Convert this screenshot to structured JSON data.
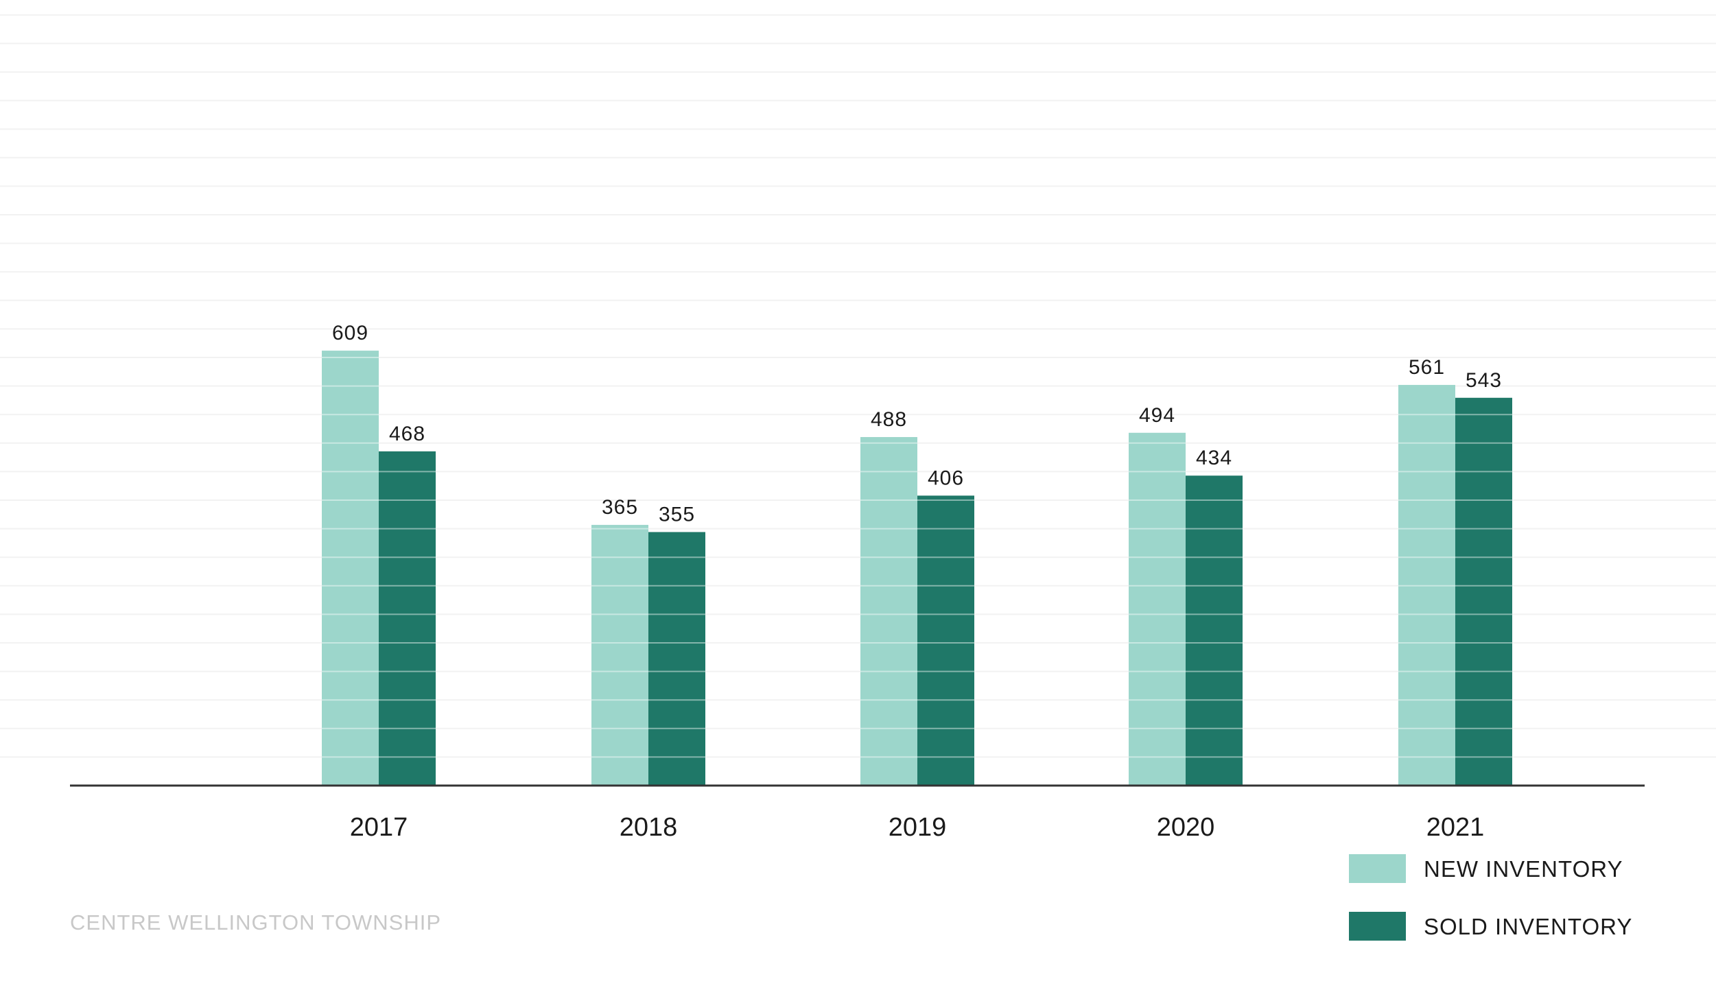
{
  "chart_data": {
    "type": "bar",
    "subtitle": "CENTRE WELLINGTON TOWNSHIP",
    "categories": [
      "2017",
      "2018",
      "2019",
      "2020",
      "2021"
    ],
    "series": [
      {
        "name": "NEW INVENTORY",
        "color": "#9cd6cb",
        "values": [
          609,
          365,
          488,
          494,
          561
        ]
      },
      {
        "name": "SOLD INVENTORY",
        "color": "#1f7868",
        "values": [
          468,
          355,
          406,
          434,
          543
        ]
      }
    ],
    "ylim": [
      0,
      1100
    ],
    "grid": true,
    "data_labels": true,
    "legend_position": "bottom-right"
  }
}
